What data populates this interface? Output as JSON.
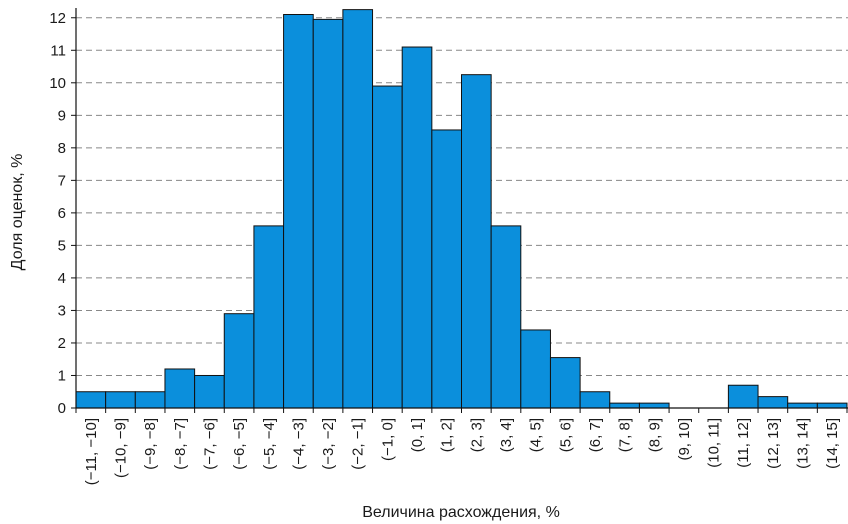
{
  "chart_data": {
    "type": "bar",
    "title": "",
    "xlabel": "Величина расхождения, %",
    "ylabel": "Доля оценок, %",
    "ylim": [
      0,
      12.3
    ],
    "yticks": [
      "0",
      "1",
      "2",
      "3",
      "4",
      "5",
      "6",
      "7",
      "8",
      "9",
      "10",
      "11",
      "12"
    ],
    "grid": "horizontal dashed",
    "categories": [
      "(−11, −10]",
      "(−10, −9]",
      "(−9, −8]",
      "(−8, −7]",
      "(−7, −6]",
      "(−6, −5]",
      "(−5, −4]",
      "(−4, −3]",
      "(−3, −2]",
      "(−2, −1]",
      "(−1, 0]",
      "(0, 1]",
      "(1, 2]",
      "(2, 3]",
      "(3, 4]",
      "(4, 5]",
      "(5, 6]",
      "(6, 7]",
      "(7, 8]",
      "(8, 9]",
      "(9, 10]",
      "(10, 11]",
      "(11, 12]",
      "(12, 13]",
      "(13, 14]",
      "(14, 15]"
    ],
    "values": [
      0.5,
      0.5,
      0.5,
      1.2,
      1.0,
      2.9,
      5.6,
      12.1,
      11.95,
      12.25,
      9.9,
      11.1,
      8.55,
      10.25,
      5.6,
      2.4,
      1.55,
      0.5,
      0.15,
      0.15,
      0,
      0,
      0.7,
      0.35,
      0.15,
      0.15
    ],
    "colors": {
      "bar": "#0b8fdc",
      "bar_edge": "#111111",
      "grid": "#888888",
      "axis": "#111111"
    }
  }
}
